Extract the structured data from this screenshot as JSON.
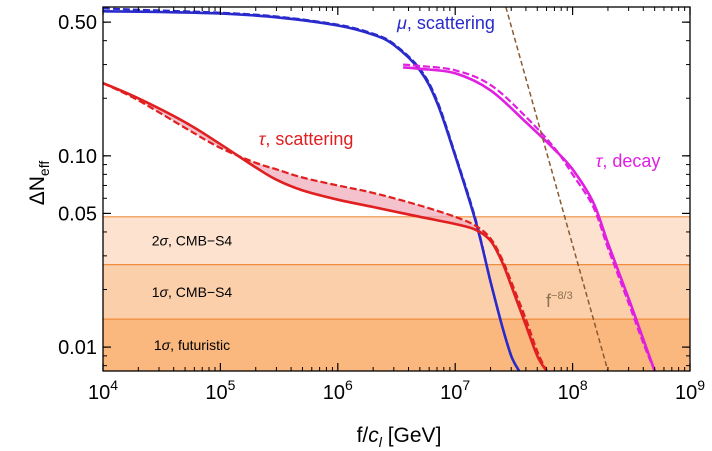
{
  "chart_data": {
    "type": "line",
    "x_scale": "log",
    "y_scale": "log",
    "xlim": [
      10000,
      1000000000
    ],
    "ylim": [
      0.0075,
      0.6
    ],
    "xlabel": "f/c_l [GeV]",
    "ylabel": "ΔN_eff",
    "x_ticks": [
      {
        "value": 10000,
        "base": "10",
        "exp": "4"
      },
      {
        "value": 100000,
        "base": "10",
        "exp": "5"
      },
      {
        "value": 1000000,
        "base": "10",
        "exp": "6"
      },
      {
        "value": 10000000,
        "base": "10",
        "exp": "7"
      },
      {
        "value": 100000000,
        "base": "10",
        "exp": "8"
      },
      {
        "value": 1000000000,
        "base": "10",
        "exp": "9"
      }
    ],
    "y_ticks": [
      {
        "value": 0.5,
        "label": "0.50"
      },
      {
        "value": 0.1,
        "label": "0.10"
      },
      {
        "value": 0.05,
        "label": "0.05"
      },
      {
        "value": 0.01,
        "label": "0.01"
      }
    ],
    "bands": [
      {
        "label_prefix": "2",
        "label_suffix": ", CMB−S4",
        "y_from": 0.027,
        "y_to": 0.048,
        "color": "#fde3cf"
      },
      {
        "label_prefix": "1",
        "label_suffix": ", CMB−S4",
        "y_from": 0.014,
        "y_to": 0.027,
        "color": "#fccfab"
      },
      {
        "label_prefix": "1",
        "label_suffix": ", futuristic",
        "y_from": 0.0075,
        "y_to": 0.014,
        "color": "#fab77e"
      }
    ],
    "band_line_color": "#f08d3c",
    "series": [
      {
        "name_symbol": "μ",
        "name_rest": ", scattering",
        "style": "solid",
        "color": "#2a2acc",
        "x": [
          10000,
          30000,
          100000,
          300000,
          1000000,
          2000000,
          3000000,
          5000000,
          7000000,
          10000000,
          15000000,
          20000000,
          25000000,
          30000000,
          35000000
        ],
        "y": [
          0.57,
          0.565,
          0.555,
          0.53,
          0.48,
          0.43,
          0.38,
          0.28,
          0.19,
          0.1,
          0.045,
          0.022,
          0.013,
          0.009,
          0.0075
        ]
      },
      {
        "name": "",
        "style": "dashed",
        "color": "#2a2acc",
        "x": [
          10000,
          30000,
          100000,
          300000,
          1000000,
          2000000,
          3000000,
          5000000,
          7000000,
          10000000,
          15000000,
          20000000,
          25000000,
          30000000,
          35000000
        ],
        "y": [
          0.59,
          0.575,
          0.56,
          0.535,
          0.485,
          0.435,
          0.385,
          0.285,
          0.195,
          0.102,
          0.046,
          0.022,
          0.013,
          0.009,
          0.0075
        ]
      },
      {
        "name_symbol": "τ",
        "name_rest": ", scattering",
        "style": "solid",
        "color": "#e02020",
        "x": [
          10000,
          20000,
          50000,
          100000,
          200000,
          300000,
          500000,
          1000000,
          2000000,
          5000000,
          10000000,
          15000000,
          20000000,
          25000000,
          30000000,
          40000000,
          50000000,
          60000000
        ],
        "y": [
          0.24,
          0.2,
          0.15,
          0.115,
          0.087,
          0.075,
          0.066,
          0.059,
          0.054,
          0.048,
          0.044,
          0.041,
          0.036,
          0.028,
          0.021,
          0.013,
          0.009,
          0.0075
        ]
      },
      {
        "name": "",
        "style": "dashed",
        "color": "#e02020",
        "x": [
          10000,
          20000,
          50000,
          100000,
          200000,
          300000,
          500000,
          1000000,
          2000000,
          5000000,
          10000000,
          15000000,
          20000000,
          25000000,
          30000000,
          40000000,
          50000000,
          60000000
        ],
        "y": [
          0.24,
          0.195,
          0.14,
          0.11,
          0.092,
          0.085,
          0.077,
          0.07,
          0.064,
          0.055,
          0.048,
          0.043,
          0.037,
          0.029,
          0.022,
          0.014,
          0.0095,
          0.0075
        ]
      },
      {
        "name_symbol": "τ",
        "name_rest": ", decay",
        "style": "solid",
        "color": "#e020e0",
        "x": [
          3600000,
          5000000,
          10000000,
          20000000,
          40000000,
          70000000,
          100000000,
          150000000,
          200000000,
          300000000,
          400000000,
          500000000
        ],
        "y": [
          0.29,
          0.285,
          0.27,
          0.22,
          0.15,
          0.108,
          0.085,
          0.057,
          0.035,
          0.018,
          0.011,
          0.0075
        ]
      },
      {
        "name": "",
        "style": "dashed",
        "color": "#e020e0",
        "x": [
          3600000,
          5000000,
          10000000,
          20000000,
          40000000,
          70000000,
          100000000,
          150000000,
          200000000,
          300000000,
          400000000,
          500000000
        ],
        "y": [
          0.3,
          0.295,
          0.28,
          0.235,
          0.16,
          0.11,
          0.08,
          0.054,
          0.033,
          0.017,
          0.0105,
          0.0075
        ]
      },
      {
        "name": "",
        "style": "dashed",
        "color": "#8c5a30",
        "x": [
          27000000,
          200000000
        ],
        "y": [
          0.6,
          0.0075
        ]
      }
    ],
    "fill_between": {
      "color": "#f0a8b8",
      "opacity": 0.7
    },
    "annotation": {
      "base": "f",
      "exp": "−8/3",
      "color": "#8c7050"
    }
  }
}
